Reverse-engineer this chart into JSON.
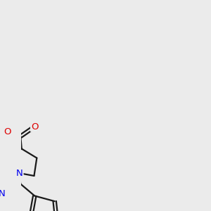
{
  "bg_color": "#ebebeb",
  "bond_color": "#1a1a1a",
  "bond_width": 1.6,
  "atom_colors": {
    "N": "#0000ee",
    "O": "#dd0000",
    "S": "#aaaa00",
    "H": "#008080"
  },
  "font_size": 9.5,
  "cooh_font_size": 9.5,
  "xlim": [
    1.5,
    7.5
  ],
  "ylim": [
    1.0,
    8.5
  ]
}
